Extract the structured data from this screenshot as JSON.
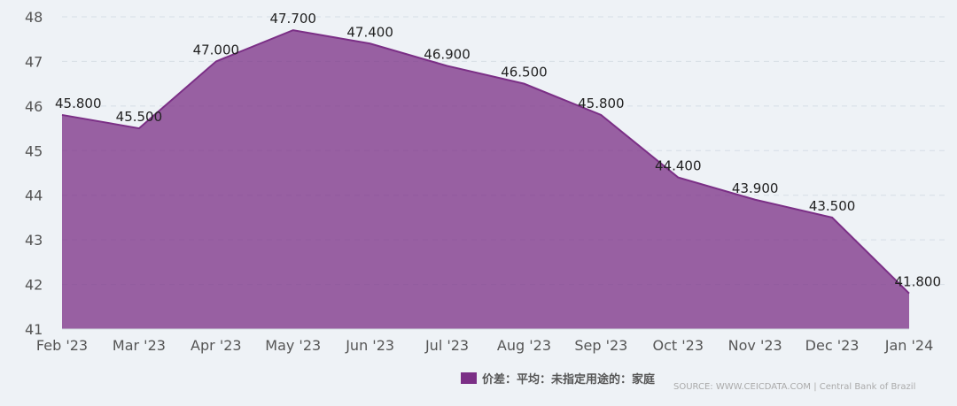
{
  "chart_data": {
    "type": "area",
    "categories": [
      "Feb '23",
      "Mar '23",
      "Apr '23",
      "May '23",
      "Jun '23",
      "Jul '23",
      "Aug '23",
      "Sep '23",
      "Oct '23",
      "Nov '23",
      "Dec '23",
      "Jan '24"
    ],
    "series": [
      {
        "name": "价差：平均：未指定用途的：家庭",
        "values": [
          45.8,
          45.5,
          47.0,
          47.7,
          47.4,
          46.9,
          46.5,
          45.8,
          44.4,
          43.9,
          43.5,
          41.8
        ],
        "labels": [
          "45.800",
          "45.500",
          "47.000",
          "47.700",
          "47.400",
          "46.900",
          "46.500",
          "45.800",
          "44.400",
          "43.900",
          "43.500",
          "41.800"
        ],
        "color": "#7b2f86"
      }
    ],
    "ylim": [
      41,
      48
    ],
    "yticks": [
      41,
      42,
      43,
      44,
      45,
      46,
      47,
      48
    ],
    "grid": "horizontal-dashed",
    "legend": "bottom-right"
  },
  "source_text": "SOURCE: WWW.CEICDATA.COM | Central Bank of Brazil"
}
